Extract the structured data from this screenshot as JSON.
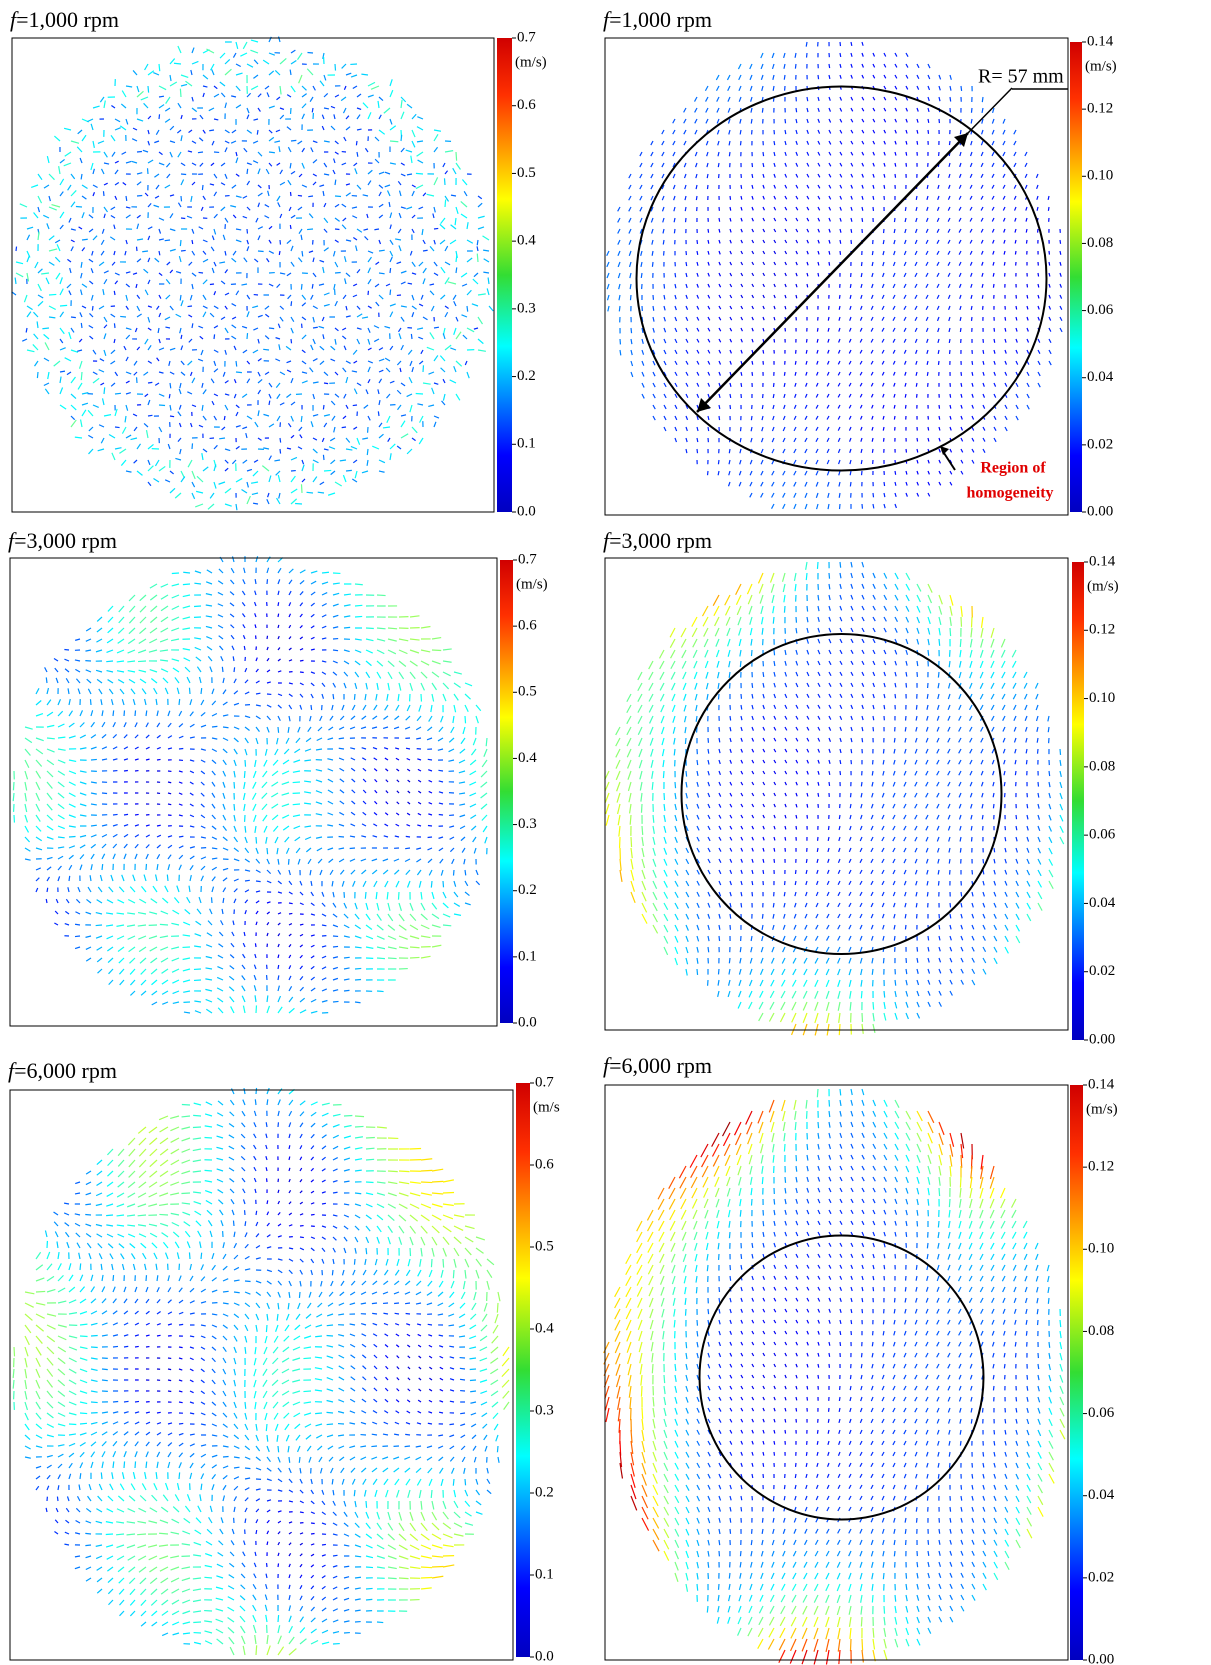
{
  "panels": [
    {
      "title_symbol": "f",
      "title_rest": "=1,000 rpm",
      "unit": "(m/s)",
      "clim": [
        0,
        0.7
      ],
      "ticks": [
        {
          "value": 0,
          "label": "0.0"
        },
        0.1,
        0.2,
        0.3,
        0.4,
        0.5,
        0.6,
        0.7
      ]
    },
    {
      "title_symbol": "f",
      "title_rest": "=1,000 rpm",
      "unit": "(m/s)",
      "clim": [
        0,
        0.14
      ],
      "ticks": [
        {
          "value": 0,
          "label": "0.00"
        },
        0.02,
        0.04,
        0.06,
        0.08,
        {
          "value": 0.1,
          "label": "0.10"
        },
        0.12,
        0.14
      ],
      "annotations": [
        "R= 57 mm",
        "Region of",
        "homogeneity"
      ]
    },
    {
      "title_symbol": "f",
      "title_rest": "=3,000 rpm",
      "unit": "(m/s)",
      "clim": [
        0,
        0.7
      ],
      "ticks": [
        {
          "value": 0,
          "label": "0.0"
        },
        0.1,
        0.2,
        0.3,
        0.4,
        0.5,
        0.6,
        0.7
      ]
    },
    {
      "title_symbol": "f",
      "title_rest": "=3,000 rpm",
      "unit": "(m/s)",
      "clim": [
        0,
        0.14
      ],
      "ticks": [
        {
          "value": 0,
          "label": "0.00"
        },
        0.02,
        0.04,
        0.06,
        0.08,
        {
          "value": 0.1,
          "label": "0.10"
        },
        0.12,
        0.14
      ]
    },
    {
      "title_symbol": "f",
      "title_rest": "=6,000 rpm",
      "unit": "(m/s",
      "clim": [
        0,
        0.7
      ],
      "ticks": [
        {
          "value": 0,
          "label": "0.0"
        },
        0.1,
        0.2,
        0.3,
        0.4,
        0.5,
        0.6,
        0.7
      ]
    },
    {
      "title_symbol": "f",
      "title_rest": "=6,000 rpm",
      "unit": "(m/s)",
      "clim": [
        0,
        0.14
      ],
      "ticks": [
        {
          "value": 0,
          "label": "0.00"
        },
        0.02,
        0.04,
        0.06,
        0.08,
        {
          "value": 0.1,
          "label": "0.10"
        },
        0.12,
        0.14
      ]
    }
  ]
}
